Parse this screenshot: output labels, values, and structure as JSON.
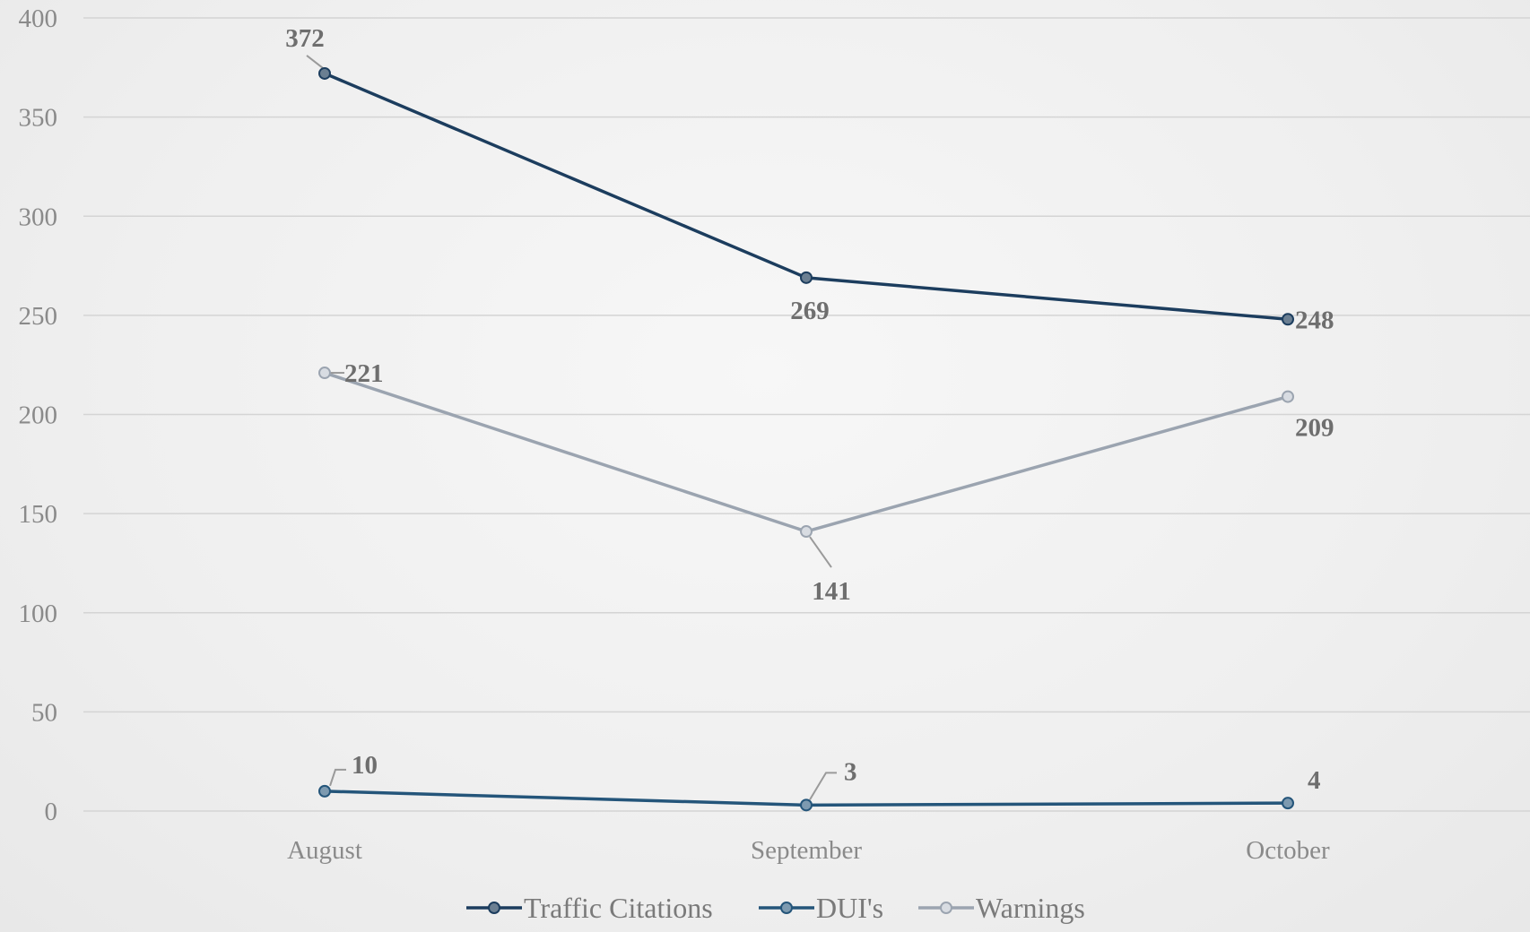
{
  "chart_data": {
    "type": "line",
    "categories": [
      "August",
      "September",
      "October"
    ],
    "ylim": [
      0,
      400
    ],
    "yticks": [
      0,
      50,
      100,
      150,
      200,
      250,
      300,
      350,
      400
    ],
    "grid": true,
    "legend_position": "bottom",
    "series": [
      {
        "name": "Traffic Citations",
        "values": [
          372,
          269,
          248
        ],
        "color": "#1c3d5e",
        "marker_fill": "#6b7f92"
      },
      {
        "name": "DUI's",
        "values": [
          10,
          3,
          4
        ],
        "color": "#24557a",
        "marker_fill": "#7d9ab0"
      },
      {
        "name": "Warnings",
        "values": [
          221,
          141,
          209
        ],
        "color": "#9ba4b0",
        "marker_fill": "#d8dce2"
      }
    ]
  }
}
